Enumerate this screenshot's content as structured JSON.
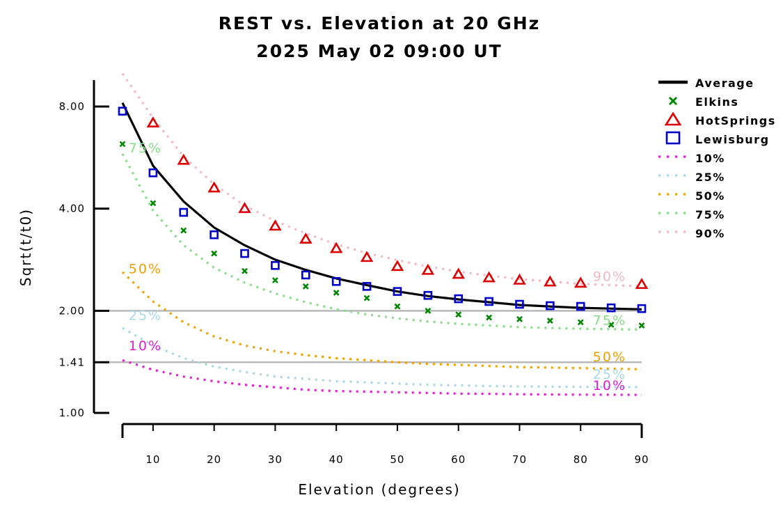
{
  "chart_data": {
    "type": "line",
    "title": "REST vs. Elevation at 20 GHz",
    "subtitle": "2025 May 02 09:00 UT",
    "xlabel": "Elevation (degrees)",
    "ylabel": "Sqrt(t/t0)",
    "y_scale": "log",
    "xlim": [
      5,
      90
    ],
    "ylim": [
      1.0,
      9.8
    ],
    "x_ticks": [
      10,
      20,
      30,
      40,
      50,
      60,
      70,
      80,
      90
    ],
    "y_ticks": [
      1.0,
      1.41,
      2.0,
      4.0,
      8.0
    ],
    "y_tick_labels": [
      "1.00",
      "1.41",
      "2.00",
      "4.00",
      "8.00"
    ],
    "reference_lines": [
      {
        "y": 2.0,
        "color": "#b8b8b8"
      },
      {
        "y": 1.41,
        "color": "#b8b8b8"
      }
    ],
    "x": [
      5,
      10,
      15,
      20,
      25,
      30,
      35,
      40,
      45,
      50,
      55,
      60,
      65,
      70,
      75,
      80,
      85,
      90
    ],
    "series": [
      {
        "name": "Average",
        "kind": "line",
        "color": "#000000",
        "values": [
          8.2,
          5.35,
          4.2,
          3.52,
          3.12,
          2.83,
          2.64,
          2.49,
          2.38,
          2.28,
          2.21,
          2.16,
          2.12,
          2.08,
          2.06,
          2.04,
          2.03,
          2.02
        ]
      },
      {
        "name": "Elkins",
        "kind": "marker",
        "marker": "x",
        "color": "#008800",
        "values": [
          6.2,
          4.15,
          3.45,
          2.95,
          2.62,
          2.46,
          2.36,
          2.26,
          2.18,
          2.06,
          2.0,
          1.95,
          1.91,
          1.89,
          1.87,
          1.85,
          1.82,
          1.81
        ]
      },
      {
        "name": "HotSprings",
        "kind": "marker",
        "marker": "triangle",
        "color": "#dd0000",
        "values": [
          null,
          7.15,
          5.55,
          4.6,
          4.0,
          3.55,
          3.25,
          3.05,
          2.87,
          2.7,
          2.63,
          2.56,
          2.5,
          2.46,
          2.43,
          2.41,
          null,
          2.39
        ]
      },
      {
        "name": "Lewisburg",
        "kind": "marker",
        "marker": "square",
        "color": "#0000cc",
        "values": [
          7.75,
          5.1,
          3.9,
          3.35,
          2.95,
          2.72,
          2.55,
          2.44,
          2.36,
          2.28,
          2.22,
          2.17,
          2.13,
          2.09,
          2.07,
          2.06,
          2.04,
          2.03
        ]
      },
      {
        "name": "10%",
        "kind": "dotted",
        "color": "#e020d0",
        "label": "10%",
        "values": [
          1.43,
          1.34,
          1.28,
          1.24,
          1.21,
          1.19,
          1.17,
          1.16,
          1.155,
          1.15,
          1.145,
          1.14,
          1.138,
          1.135,
          1.133,
          1.132,
          1.131,
          1.13
        ]
      },
      {
        "name": "25%",
        "kind": "dotted",
        "color": "#a8d8e8",
        "label": "25%",
        "values": [
          1.78,
          1.58,
          1.45,
          1.37,
          1.32,
          1.28,
          1.26,
          1.24,
          1.23,
          1.22,
          1.21,
          1.205,
          1.2,
          1.197,
          1.195,
          1.193,
          1.192,
          1.19
        ]
      },
      {
        "name": "50%",
        "kind": "dotted",
        "color": "#f0a000",
        "label": "50%",
        "values": [
          2.6,
          2.13,
          1.85,
          1.68,
          1.58,
          1.52,
          1.48,
          1.45,
          1.43,
          1.41,
          1.395,
          1.385,
          1.375,
          1.365,
          1.36,
          1.355,
          1.35,
          1.345
        ]
      },
      {
        "name": "75%",
        "kind": "dotted",
        "color": "#88dd88",
        "label": "75%",
        "values": [
          5.8,
          3.95,
          3.12,
          2.68,
          2.42,
          2.25,
          2.12,
          2.02,
          1.95,
          1.9,
          1.86,
          1.83,
          1.81,
          1.79,
          1.78,
          1.77,
          1.765,
          1.76
        ]
      },
      {
        "name": "90%",
        "kind": "dotted",
        "color": "#f4b8c0",
        "label": "90%",
        "values": [
          10.0,
          7.4,
          5.7,
          4.72,
          4.08,
          3.68,
          3.38,
          3.14,
          2.96,
          2.82,
          2.7,
          2.61,
          2.54,
          2.48,
          2.44,
          2.4,
          2.38,
          2.36
        ]
      }
    ],
    "curve_labels": [
      {
        "text": "75%",
        "color": "#88dd88",
        "x": 6,
        "y": 5.85
      },
      {
        "text": "50%",
        "color": "#f0a000",
        "x": 6,
        "y": 2.58
      },
      {
        "text": "25%",
        "color": "#a8d8e8",
        "x": 6,
        "y": 1.88
      },
      {
        "text": "10%",
        "color": "#e020d0",
        "x": 6,
        "y": 1.53
      },
      {
        "text": "90%",
        "color": "#f4b8c0",
        "x": 82,
        "y": 2.45
      },
      {
        "text": "75%",
        "color": "#88dd88",
        "x": 82,
        "y": 1.82
      },
      {
        "text": "50%",
        "color": "#f0a000",
        "x": 82,
        "y": 1.42
      },
      {
        "text": "25%",
        "color": "#a8d8e8",
        "x": 82,
        "y": 1.26
      },
      {
        "text": "10%",
        "color": "#e020d0",
        "x": 82,
        "y": 1.17
      }
    ],
    "legend": {
      "placement": "right",
      "entries": [
        {
          "label": "Average",
          "style": "line",
          "color": "#000000"
        },
        {
          "label": "Elkins",
          "style": "x",
          "color": "#008800"
        },
        {
          "label": "HotSprings",
          "style": "triangle",
          "color": "#dd0000"
        },
        {
          "label": "Lewisburg",
          "style": "square",
          "color": "#0000cc"
        },
        {
          "label": "10%",
          "style": "dotted",
          "color": "#e020d0"
        },
        {
          "label": "25%",
          "style": "dotted",
          "color": "#a8d8e8"
        },
        {
          "label": "50%",
          "style": "dotted",
          "color": "#f0a000"
        },
        {
          "label": "75%",
          "style": "dotted",
          "color": "#88dd88"
        },
        {
          "label": "90%",
          "style": "dotted",
          "color": "#f4b8c0"
        }
      ]
    }
  }
}
